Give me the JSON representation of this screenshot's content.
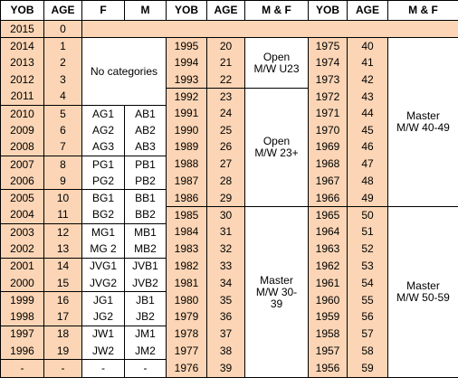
{
  "header": [
    "YOB",
    "AGE",
    "F",
    "M",
    "YOB",
    "AGE",
    "M & F",
    "YOB",
    "AGE",
    "M & F"
  ],
  "left": {
    "rows": [
      [
        2015,
        0
      ],
      [
        2014,
        1
      ],
      [
        2013,
        2
      ],
      [
        2012,
        3
      ],
      [
        2011,
        4
      ],
      [
        2010,
        5,
        "AG1",
        "AB1"
      ],
      [
        2009,
        6,
        "AG2",
        "AB2"
      ],
      [
        2008,
        7,
        "AG3",
        "AB3"
      ],
      [
        2007,
        8,
        "PG1",
        "PB1"
      ],
      [
        2006,
        9,
        "PG2",
        "PB2"
      ],
      [
        2005,
        10,
        "BG1",
        "BB1"
      ],
      [
        2004,
        11,
        "BG2",
        "BB2"
      ],
      [
        2003,
        12,
        "MG1",
        "MB1"
      ],
      [
        2002,
        13,
        "MG 2",
        "MB2"
      ],
      [
        2001,
        14,
        "JVG1",
        "JVB1"
      ],
      [
        2000,
        15,
        "JVG2",
        "JVB2"
      ],
      [
        1999,
        16,
        "JG1",
        "JB1"
      ],
      [
        1998,
        17,
        "JG2",
        "JB2"
      ],
      [
        1997,
        18,
        "JW1",
        "JM1"
      ],
      [
        1996,
        19,
        "JW2",
        "JM2"
      ],
      [
        "-",
        "-",
        "-",
        "-"
      ]
    ],
    "merged": "No categories"
  },
  "middle": {
    "rows": [
      [
        1995,
        20
      ],
      [
        1994,
        21
      ],
      [
        1993,
        22
      ],
      [
        1992,
        23
      ],
      [
        1991,
        24
      ],
      [
        1990,
        25
      ],
      [
        1989,
        26
      ],
      [
        1988,
        27
      ],
      [
        1987,
        28
      ],
      [
        1986,
        29
      ],
      [
        1985,
        30
      ],
      [
        1984,
        31
      ],
      [
        1983,
        32
      ],
      [
        1982,
        33
      ],
      [
        1981,
        34
      ],
      [
        1980,
        35
      ],
      [
        1979,
        36
      ],
      [
        1978,
        37
      ],
      [
        1977,
        38
      ],
      [
        1976,
        39
      ]
    ],
    "groups": [
      "Open M/W U23",
      "Open M/W 23+",
      "Master M/W 30-39"
    ]
  },
  "right": {
    "rows": [
      [
        1975,
        40
      ],
      [
        1974,
        41
      ],
      [
        1973,
        42
      ],
      [
        1972,
        43
      ],
      [
        1971,
        44
      ],
      [
        1970,
        45
      ],
      [
        1969,
        46
      ],
      [
        1968,
        47
      ],
      [
        1967,
        48
      ],
      [
        1966,
        49
      ],
      [
        1965,
        50
      ],
      [
        1964,
        51
      ],
      [
        1963,
        52
      ],
      [
        1962,
        53
      ],
      [
        1961,
        54
      ],
      [
        1960,
        55
      ],
      [
        1959,
        56
      ],
      [
        1958,
        57
      ],
      [
        1957,
        58
      ],
      [
        1956,
        59
      ]
    ],
    "groups": [
      "Master M/W 40-49",
      "Master M/W 50-59"
    ]
  }
}
